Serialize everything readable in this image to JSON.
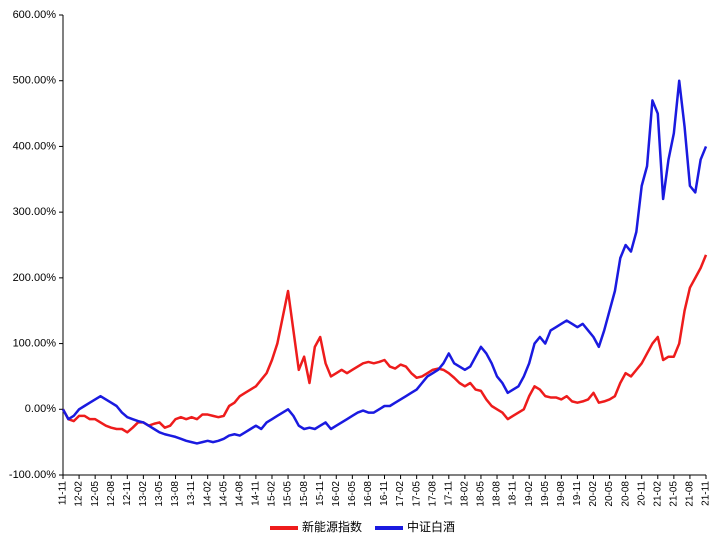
{
  "chart_data": {
    "type": "line",
    "categories": [
      "11-11",
      null,
      null,
      "12-02",
      null,
      null,
      "12-05",
      null,
      null,
      "12-08",
      null,
      null,
      "12-11",
      null,
      null,
      "13-02",
      null,
      null,
      "13-05",
      null,
      null,
      "13-08",
      null,
      null,
      "13-11",
      null,
      null,
      "14-02",
      null,
      null,
      "14-05",
      null,
      null,
      "14-08",
      null,
      null,
      "14-11",
      null,
      null,
      "15-02",
      null,
      null,
      "15-05",
      null,
      null,
      "15-08",
      null,
      null,
      "15-11",
      null,
      null,
      "16-02",
      null,
      null,
      "16-05",
      null,
      null,
      "16-08",
      null,
      null,
      "16-11",
      null,
      null,
      "17-02",
      null,
      null,
      "17-05",
      null,
      null,
      "17-08",
      null,
      null,
      "17-11",
      null,
      null,
      "18-02",
      null,
      null,
      "18-05",
      null,
      null,
      "18-08",
      null,
      null,
      "18-11",
      null,
      null,
      "19-02",
      null,
      null,
      "19-05",
      null,
      null,
      "19-08",
      null,
      null,
      "19-11",
      null,
      null,
      "20-02",
      null,
      null,
      "20-05",
      null,
      null,
      "20-08",
      null,
      null,
      "20-11",
      null,
      null,
      "21-02",
      null,
      null,
      "21-05",
      null,
      null,
      "21-08",
      null,
      null,
      "21-11"
    ],
    "series": [
      {
        "name": "新能源指数",
        "color": "#ee1c1c",
        "values": [
          0,
          -15,
          -18,
          -10,
          -10,
          -15,
          -15,
          -20,
          -25,
          -28,
          -30,
          -30,
          -35,
          -28,
          -20,
          -20,
          -25,
          -22,
          -20,
          -28,
          -25,
          -15,
          -12,
          -15,
          -12,
          -15,
          -8,
          -8,
          -10,
          -12,
          -10,
          5,
          10,
          20,
          25,
          30,
          35,
          45,
          55,
          75,
          100,
          140,
          180,
          120,
          60,
          80,
          40,
          95,
          110,
          70,
          50,
          55,
          60,
          55,
          60,
          65,
          70,
          72,
          70,
          72,
          75,
          65,
          62,
          68,
          65,
          55,
          48,
          50,
          55,
          60,
          62,
          60,
          55,
          48,
          40,
          35,
          40,
          30,
          28,
          15,
          5,
          0,
          -5,
          -15,
          -10,
          -5,
          0,
          20,
          35,
          30,
          20,
          18,
          18,
          15,
          20,
          12,
          10,
          12,
          15,
          25,
          10,
          12,
          15,
          20,
          40,
          55,
          50,
          60,
          70,
          85,
          100,
          110,
          75,
          80,
          80,
          100,
          150,
          185,
          200,
          215,
          235
        ]
      },
      {
        "name": "中证白酒",
        "color": "#1a1ae0",
        "values": [
          0,
          -15,
          -10,
          0,
          5,
          10,
          15,
          20,
          15,
          10,
          5,
          -5,
          -12,
          -15,
          -18,
          -20,
          -25,
          -30,
          -35,
          -38,
          -40,
          -42,
          -45,
          -48,
          -50,
          -52,
          -50,
          -48,
          -50,
          -48,
          -45,
          -40,
          -38,
          -40,
          -35,
          -30,
          -25,
          -30,
          -20,
          -15,
          -10,
          -5,
          0,
          -10,
          -25,
          -30,
          -28,
          -30,
          -25,
          -20,
          -30,
          -25,
          -20,
          -15,
          -10,
          -5,
          -2,
          -5,
          -5,
          0,
          5,
          5,
          10,
          15,
          20,
          25,
          30,
          40,
          50,
          55,
          60,
          70,
          85,
          70,
          65,
          60,
          65,
          80,
          95,
          85,
          70,
          50,
          40,
          25,
          30,
          35,
          50,
          70,
          100,
          110,
          100,
          120,
          125,
          130,
          135,
          130,
          125,
          130,
          120,
          110,
          95,
          120,
          150,
          180,
          230,
          250,
          240,
          270,
          340,
          370,
          470,
          450,
          320,
          380,
          420,
          500,
          430,
          340,
          330,
          380,
          400
        ]
      }
    ],
    "ylim": [
      -100,
      600
    ],
    "yticks": [
      {
        "value": -100,
        "label": "-100.00%"
      },
      {
        "value": 0,
        "label": "0.00%"
      },
      {
        "value": 100,
        "label": "100.00%"
      },
      {
        "value": 200,
        "label": "200.00%"
      },
      {
        "value": 300,
        "label": "300.00%"
      },
      {
        "value": 400,
        "label": "400.00%"
      },
      {
        "value": 500,
        "label": "500.00%"
      },
      {
        "value": 600,
        "label": "600.00%"
      }
    ],
    "legend": "bottom"
  }
}
